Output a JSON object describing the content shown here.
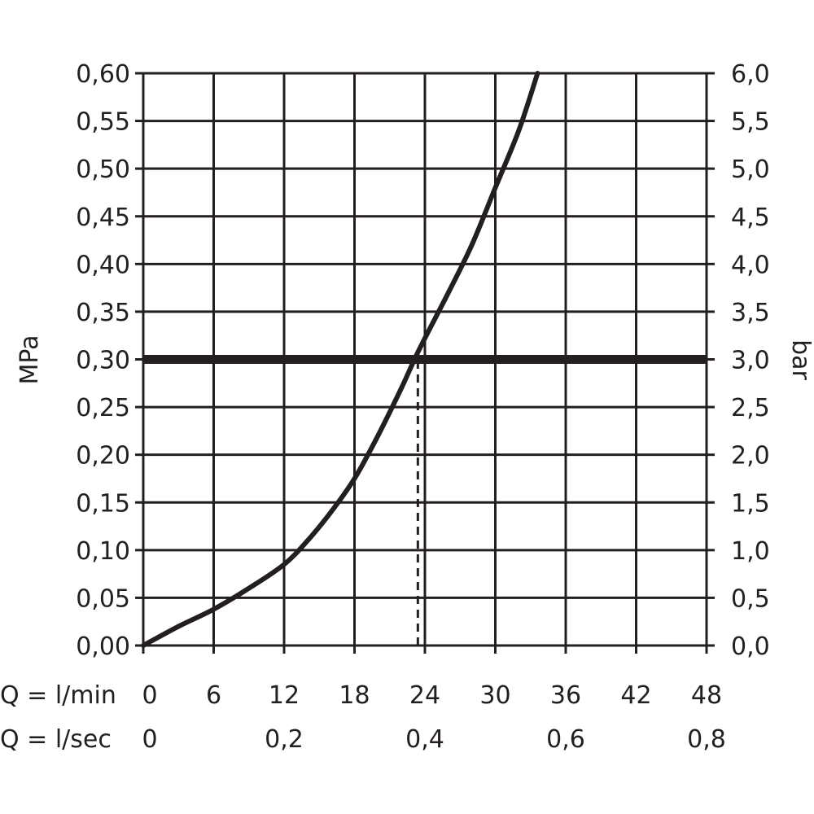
{
  "chart_data": {
    "type": "line",
    "title": "",
    "left_axis": {
      "label": "MPa",
      "range": [
        0,
        0.6
      ],
      "ticks": [
        0,
        0.05,
        0.1,
        0.15,
        0.2,
        0.25,
        0.3,
        0.35,
        0.4,
        0.45,
        0.5,
        0.55,
        0.6
      ],
      "tick_labels": [
        "0,00",
        "0,05",
        "0,10",
        "0,15",
        "0,20",
        "0,25",
        "0,30",
        "0,35",
        "0,40",
        "0,45",
        "0,50",
        "0,55",
        "0,60"
      ]
    },
    "right_axis": {
      "label": "bar",
      "range": [
        0,
        6.0
      ],
      "tick_labels": [
        "0,0",
        "0,5",
        "1,0",
        "1,5",
        "2,0",
        "2,5",
        "3,0",
        "3,5",
        "4,0",
        "4,5",
        "5,0",
        "5,5",
        "6,0"
      ]
    },
    "x_axis_lmin": {
      "label": "Q = l/min",
      "range": [
        0,
        48
      ],
      "ticks": [
        0,
        6,
        12,
        18,
        24,
        30,
        36,
        42,
        48
      ],
      "tick_labels": [
        "0",
        "6",
        "12",
        "18",
        "24",
        "30",
        "36",
        "42",
        "48"
      ]
    },
    "x_axis_lsec": {
      "label": "Q = l/sec",
      "ticks": [
        0,
        0.2,
        0.4,
        0.6,
        0.8
      ],
      "tick_labels": [
        "0",
        "0,2",
        "0,4",
        "0,6",
        "0,8"
      ]
    },
    "grid": true,
    "series": [
      {
        "x": [
          0,
          3,
          6,
          9,
          12,
          14,
          16,
          18,
          20,
          22,
          23.5,
          26,
          28,
          30,
          32,
          33.6
        ],
        "y": [
          0.0,
          0.02,
          0.038,
          0.06,
          0.085,
          0.11,
          0.14,
          0.175,
          0.22,
          0.27,
          0.31,
          0.37,
          0.42,
          0.48,
          0.54,
          0.6
        ]
      }
    ],
    "reference_line": {
      "y": 0.3
    },
    "marker_line": {
      "x": 23.4,
      "y_from": 0,
      "y_to": 0.3,
      "style": "dashed"
    }
  }
}
